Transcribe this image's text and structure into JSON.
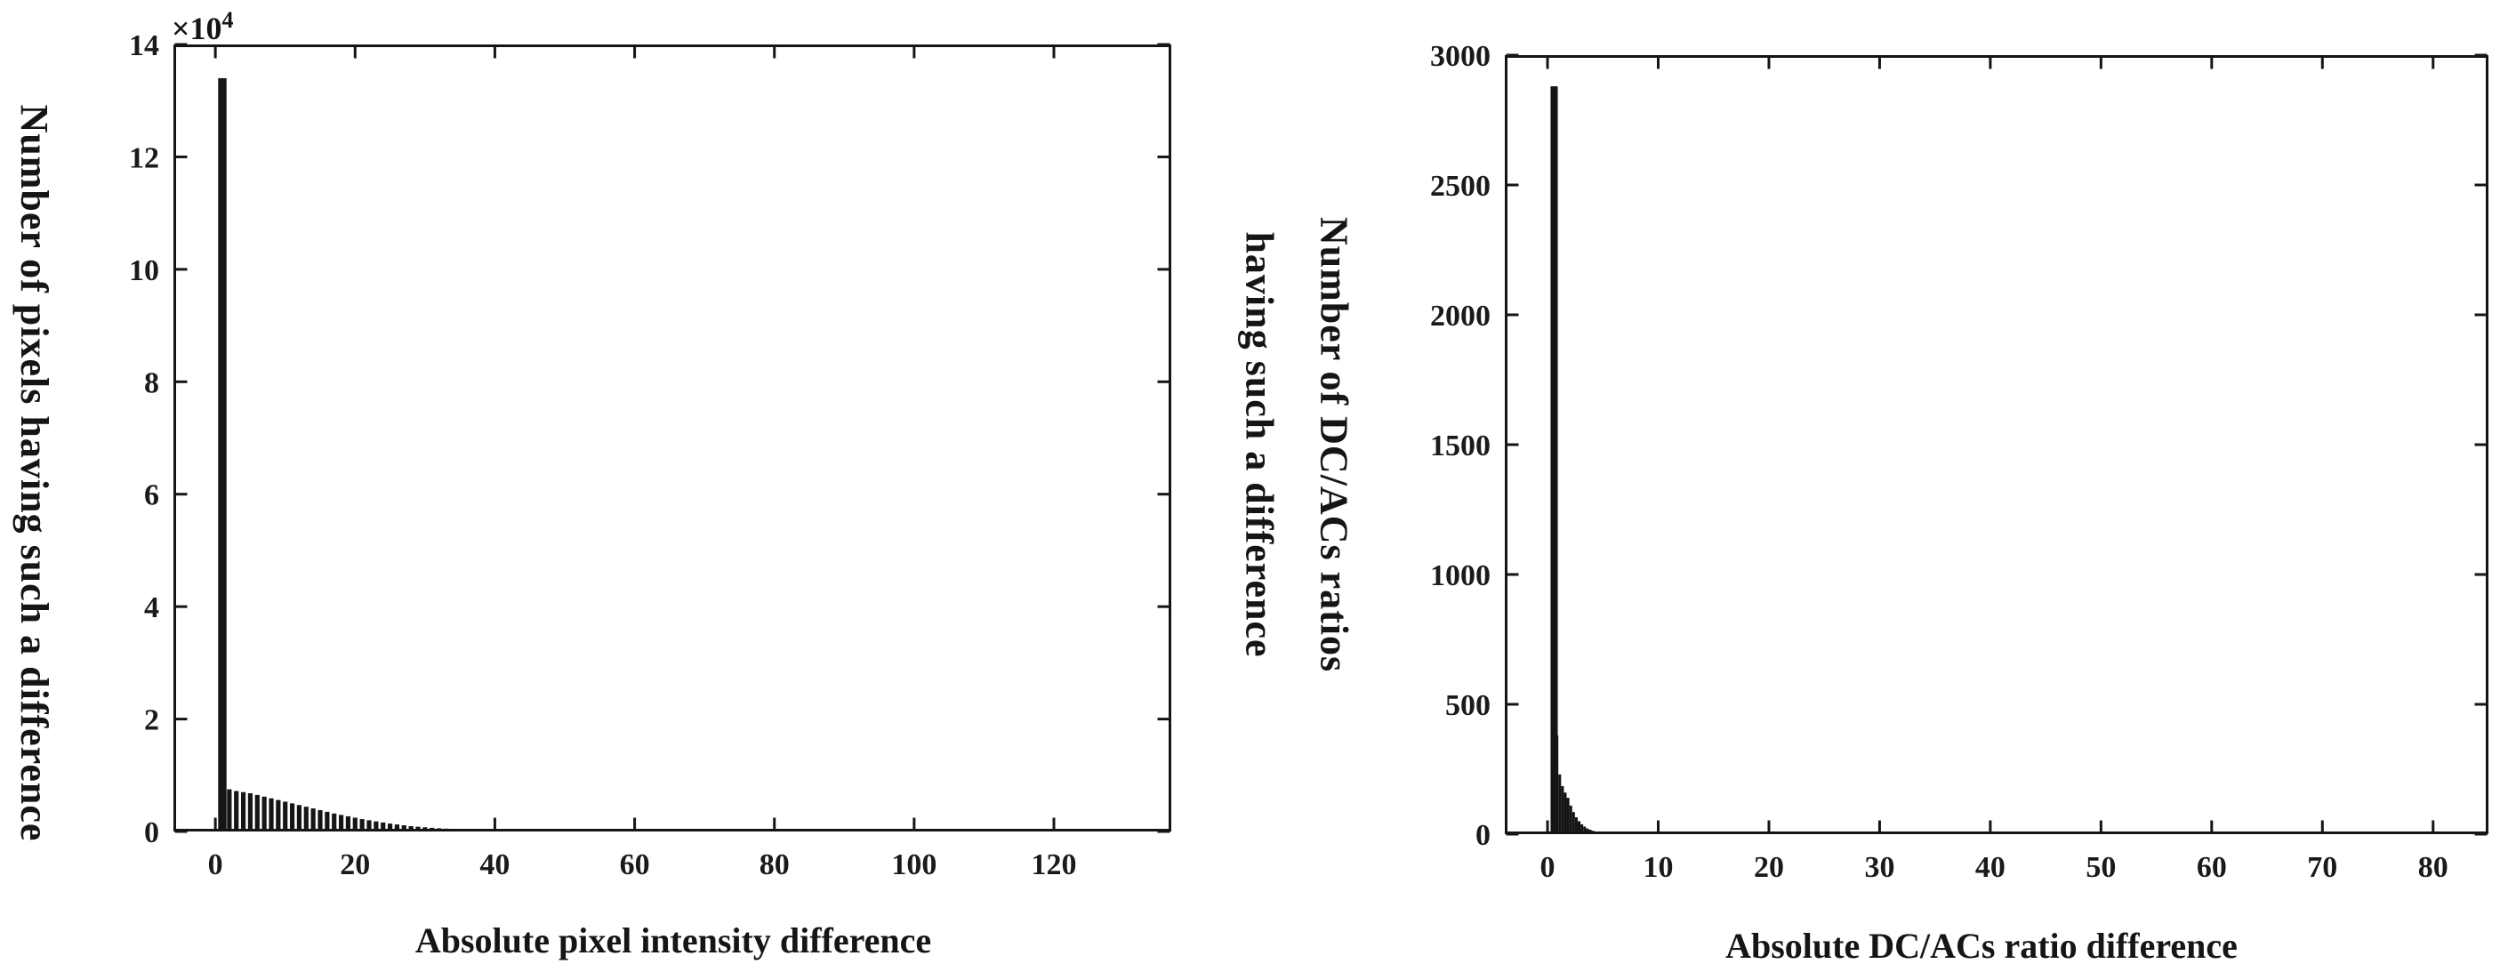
{
  "figure": {
    "background": "#ffffff",
    "ink": "#151515"
  },
  "chart_data": [
    {
      "id": "left",
      "type": "bar",
      "title": "",
      "xlabel": "Absolute pixel intensity difference",
      "ylabel": "Number of pixels having such a difference",
      "y_scale_note": {
        "base": "×10",
        "exponent": "4"
      },
      "xlim": [
        -6,
        136.8
      ],
      "ylim": [
        0,
        140000
      ],
      "x_ticks": [
        0,
        20,
        40,
        60,
        80,
        100,
        120
      ],
      "x_tick_labels": [
        "0",
        "20",
        "40",
        "60",
        "80",
        "100",
        "120"
      ],
      "y_ticks": [
        0,
        20000,
        40000,
        60000,
        80000,
        100000,
        120000,
        140000
      ],
      "y_tick_labels": [
        "0",
        "2",
        "4",
        "6",
        "8",
        "10",
        "12",
        "14"
      ],
      "grid": false,
      "legend": null,
      "bar_color": "#151515",
      "bins": {
        "x_start": 1,
        "step": 1,
        "bar_width_frac": 0.66,
        "first_bin_width_units": 1.2,
        "counts": [
          134000,
          7500,
          7200,
          7000,
          6800,
          6500,
          6200,
          5900,
          5600,
          5300,
          5000,
          4700,
          4400,
          4100,
          3800,
          3500,
          3200,
          2950,
          2700,
          2450,
          2200,
          2000,
          1800,
          1600,
          1400,
          1250,
          1100,
          950,
          850,
          750,
          650,
          570,
          500,
          440,
          380,
          330,
          290,
          250,
          220,
          190,
          170,
          150,
          130,
          115,
          100,
          90,
          80,
          70,
          60,
          55,
          50,
          45,
          40,
          36,
          32,
          29,
          26,
          23,
          21,
          19,
          17,
          15,
          14,
          12,
          11,
          10,
          9,
          8,
          8,
          7,
          6,
          6,
          5,
          5,
          4,
          4,
          4,
          3,
          3,
          3
        ]
      }
    },
    {
      "id": "right",
      "type": "bar",
      "title": "",
      "xlabel": "Absolute DC/ACs ratio difference",
      "ylabel": "Number of DC/ACs ratios having such a difference",
      "ylabel_line1": "Number of DC/ACs ratios",
      "ylabel_line2": "having such a difference",
      "xlim": [
        -3.86,
        85.0
      ],
      "ylim": [
        0,
        3000
      ],
      "x_ticks": [
        0,
        10,
        20,
        30,
        40,
        50,
        60,
        70,
        80
      ],
      "x_tick_labels": [
        "0",
        "10",
        "20",
        "30",
        "40",
        "50",
        "60",
        "70",
        "80"
      ],
      "y_ticks": [
        0,
        500,
        1000,
        1500,
        2000,
        2500,
        3000
      ],
      "y_tick_labels": [
        "0",
        "500",
        "1000",
        "1500",
        "2000",
        "2500",
        "3000"
      ],
      "grid": false,
      "legend": null,
      "bar_color": "#151515",
      "bins": {
        "x_start": 0.6,
        "step": 0.25,
        "bar_width_frac": 1.0,
        "first_bin_width_units": 0.65,
        "counts": [
          2880,
          380,
          230,
          185,
          160,
          140,
          110,
          85,
          65,
          50,
          38,
          29,
          22,
          17,
          13,
          10,
          8,
          6,
          5,
          4,
          3,
          3,
          2,
          2,
          1,
          1
        ]
      }
    }
  ]
}
